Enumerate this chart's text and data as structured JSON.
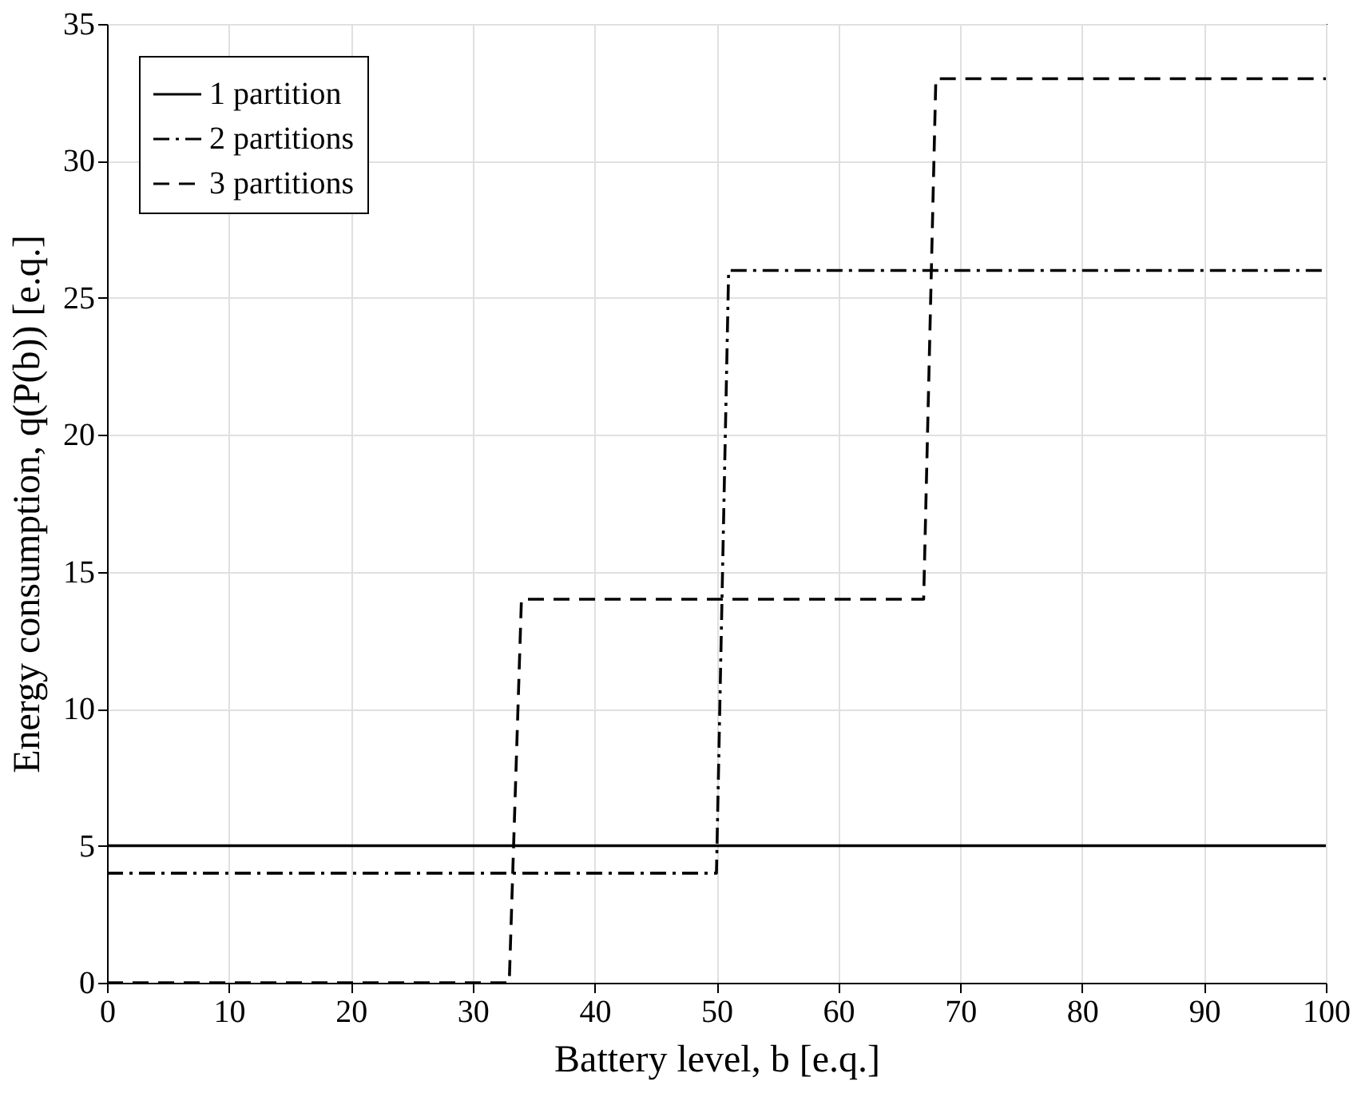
{
  "chart_data": {
    "type": "line",
    "xlabel": "Battery level, b [e.q.]",
    "ylabel": "Energy consumption, q(P(b)) [e.q.]",
    "xlim": [
      0,
      100
    ],
    "xticks": [
      0,
      10,
      20,
      30,
      40,
      50,
      60,
      70,
      80,
      90,
      100
    ],
    "ylim": [
      0,
      35
    ],
    "yticks": [
      0,
      5,
      10,
      15,
      20,
      25,
      30,
      35
    ],
    "grid": true,
    "legend": "top left",
    "marker": "none",
    "series": [
      {
        "name": "1 partition",
        "color": "#000000",
        "line_style": "solid",
        "x": [
          0,
          100
        ],
        "values": [
          5,
          5
        ]
      },
      {
        "name": "2 partitions",
        "color": "#000000",
        "line_style": "dashdot",
        "x": [
          0,
          50,
          51,
          100
        ],
        "values": [
          4,
          4,
          26,
          26
        ]
      },
      {
        "name": "3 partitions",
        "color": "#000000",
        "line_style": "dashed",
        "x": [
          0,
          33,
          34,
          67,
          68,
          100
        ],
        "values": [
          0,
          0,
          14,
          14,
          33,
          33
        ]
      }
    ]
  }
}
